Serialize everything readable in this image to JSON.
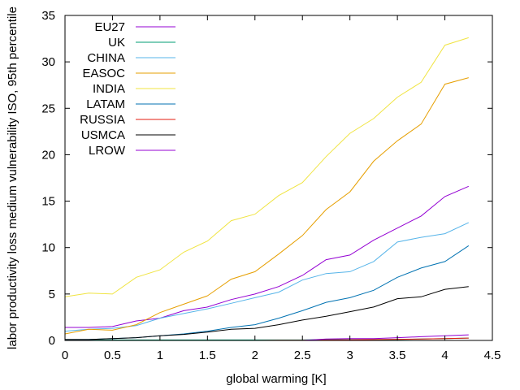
{
  "chart_data": {
    "type": "line",
    "title": "",
    "xlabel": "global warming [K]",
    "ylabel": "labor productivity loss medium vulnerability ISO, 95th percentile",
    "xlim": [
      0,
      4.5
    ],
    "ylim": [
      0,
      35
    ],
    "xticks": [
      "0",
      "0.5",
      "1",
      "1.5",
      "2",
      "2.5",
      "3",
      "3.5",
      "4",
      "4.5"
    ],
    "yticks": [
      "0",
      "5",
      "10",
      "15",
      "20",
      "25",
      "30",
      "35"
    ],
    "grid": false,
    "legend_position": "top-left",
    "x": [
      0,
      0.25,
      0.5,
      0.75,
      1,
      1.25,
      1.5,
      1.75,
      2,
      2.25,
      2.5,
      2.75,
      3,
      3.25,
      3.5,
      3.75,
      4,
      4.25
    ],
    "series": [
      {
        "name": "EU27",
        "color": "#9400d3",
        "values": [
          1.4,
          1.4,
          1.5,
          2.1,
          2.4,
          3.2,
          3.6,
          4.4,
          5.0,
          5.8,
          7.0,
          8.7,
          9.2,
          10.8,
          12.1,
          13.4,
          15.5,
          16.6
        ]
      },
      {
        "name": "UK",
        "color": "#009e73",
        "values": [
          0.05,
          0.05,
          0.05,
          0.05,
          0.05,
          0.05,
          0.05,
          0.05,
          0.05,
          0.05,
          0.05,
          0.08,
          0.08,
          0.08,
          0.1,
          0.15,
          0.2,
          0.25
        ]
      },
      {
        "name": "CHINA",
        "color": "#56b4e9",
        "values": [
          1.0,
          1.2,
          1.3,
          1.6,
          2.4,
          2.9,
          3.4,
          4.0,
          4.6,
          5.2,
          6.5,
          7.2,
          7.4,
          8.5,
          10.6,
          11.1,
          11.5,
          12.7
        ]
      },
      {
        "name": "EASOC",
        "color": "#e69f00",
        "values": [
          0.7,
          1.2,
          1.1,
          1.7,
          3.0,
          3.9,
          4.8,
          6.6,
          7.4,
          9.3,
          11.3,
          14.1,
          16.0,
          19.3,
          21.5,
          23.3,
          27.6,
          28.3
        ]
      },
      {
        "name": "INDIA",
        "color": "#f0e442",
        "values": [
          4.7,
          5.1,
          5.0,
          6.8,
          7.6,
          9.5,
          10.7,
          12.9,
          13.6,
          15.6,
          17.0,
          19.8,
          22.3,
          23.9,
          26.2,
          27.8,
          31.8,
          32.6
        ]
      },
      {
        "name": "LATAM",
        "color": "#0072b2",
        "values": [
          0.1,
          0.1,
          0.2,
          0.3,
          0.5,
          0.7,
          1.0,
          1.4,
          1.7,
          2.4,
          3.2,
          4.1,
          4.6,
          5.4,
          6.8,
          7.8,
          8.5,
          10.2
        ]
      },
      {
        "name": "RUSSIA",
        "color": "#e51e10",
        "values": [
          0,
          0,
          0,
          0,
          0,
          0,
          0,
          0,
          0,
          0.02,
          0.03,
          0.05,
          0.07,
          0.1,
          0.12,
          0.15,
          0.2,
          0.25
        ]
      },
      {
        "name": "USMCA",
        "color": "#000000",
        "values": [
          0.1,
          0.1,
          0.2,
          0.3,
          0.5,
          0.65,
          0.9,
          1.2,
          1.3,
          1.7,
          2.2,
          2.6,
          3.1,
          3.6,
          4.5,
          4.7,
          5.5,
          5.8
        ]
      },
      {
        "name": "LROW",
        "color": "#9400d3",
        "values": [
          0,
          0,
          0,
          0,
          0,
          0,
          0,
          0,
          0,
          0,
          0,
          0.15,
          0.2,
          0.2,
          0.3,
          0.4,
          0.5,
          0.6
        ]
      }
    ]
  }
}
